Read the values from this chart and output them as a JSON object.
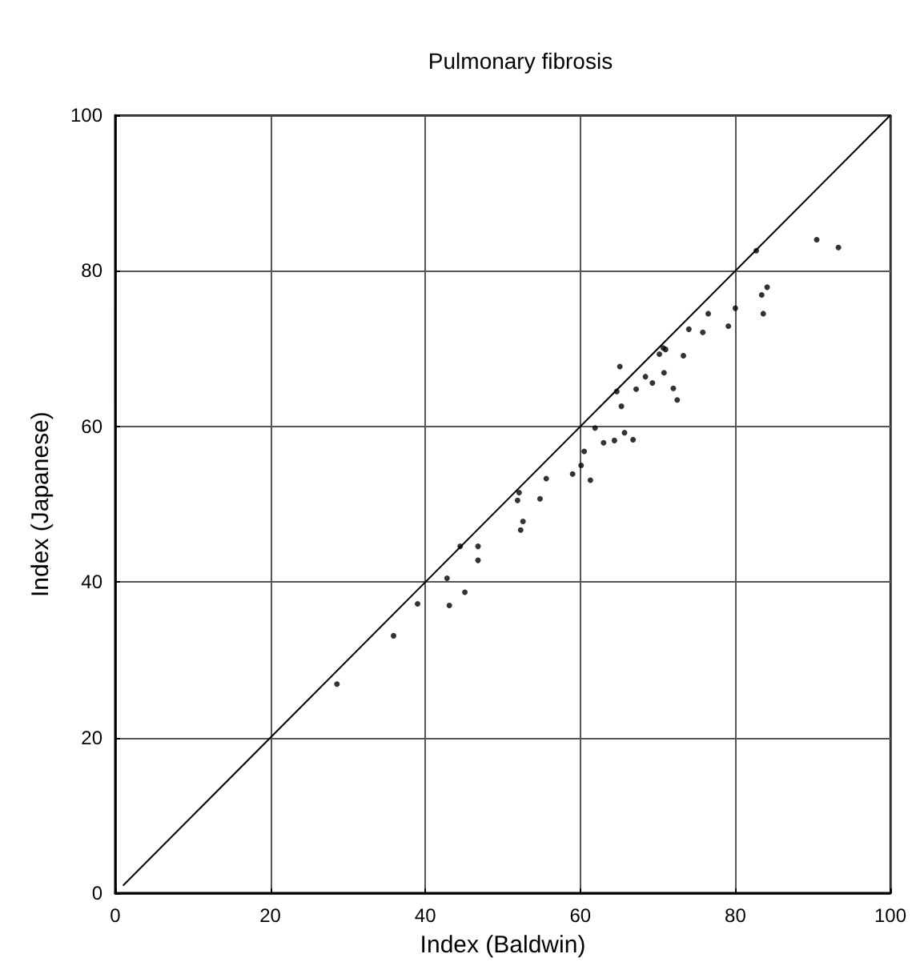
{
  "chart_data": {
    "type": "scatter",
    "title": "Pulmonary fibrosis",
    "xlabel": "Index (Baldwin)",
    "ylabel": "Index (Japanese)",
    "xlim": [
      0,
      100
    ],
    "ylim": [
      0,
      100
    ],
    "xticks": [
      0,
      20,
      40,
      60,
      80,
      100
    ],
    "yticks": [
      0,
      20,
      40,
      60,
      80,
      100
    ],
    "grid": true,
    "marker": "circle",
    "series": [
      {
        "color": "#000000",
        "x": [
          28.6,
          35.9,
          39.0,
          42.8,
          43.1,
          44.5,
          45.1,
          46.8,
          46.8,
          51.9,
          52.1,
          52.3,
          52.6,
          54.8,
          55.6,
          59.0,
          60.1,
          60.5,
          61.3,
          61.9,
          63.0,
          64.4,
          64.7,
          65.1,
          65.3,
          65.7,
          66.8,
          67.2,
          68.4,
          69.3,
          70.2,
          70.7,
          71.0,
          70.8,
          72.0,
          72.5,
          73.3,
          74.0,
          75.8,
          76.5,
          79.1,
          80.0,
          82.7,
          83.4,
          84.1,
          83.6,
          90.5,
          93.3
        ],
        "values": [
          26.9,
          33.1,
          37.2,
          40.5,
          37.0,
          44.6,
          38.7,
          44.6,
          42.8,
          50.5,
          51.5,
          46.7,
          47.8,
          50.7,
          53.3,
          53.9,
          55.0,
          56.8,
          53.1,
          59.8,
          57.9,
          58.2,
          64.5,
          67.7,
          62.6,
          59.2,
          58.3,
          64.8,
          66.4,
          65.6,
          69.3,
          70.1,
          69.9,
          66.9,
          64.9,
          63.4,
          69.1,
          72.5,
          72.1,
          74.5,
          72.9,
          75.2,
          82.6,
          76.9,
          77.9,
          74.5,
          84.0,
          83.0
        ]
      },
      {
        "type": "line",
        "color": "#000000",
        "marker": "none",
        "line_style": "solid",
        "x": [
          1,
          100
        ],
        "values": [
          1,
          100
        ]
      }
    ]
  }
}
